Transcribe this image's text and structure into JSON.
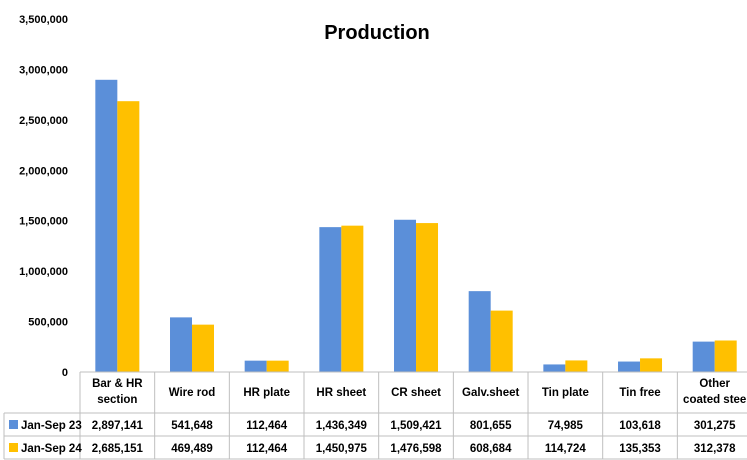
{
  "chart_data": {
    "type": "bar",
    "title": "Production",
    "xlabel": "",
    "ylabel": "",
    "ylim": [
      0,
      3500000
    ],
    "yticks": [
      0,
      500000,
      1000000,
      1500000,
      2000000,
      2500000,
      3000000,
      3500000
    ],
    "ytick_labels": [
      "0",
      "500,000",
      "1,000,000",
      "1,500,000",
      "2,000,000",
      "2,500,000",
      "3,000,000",
      "3,500,000"
    ],
    "grid": false,
    "legend": "data-table-below",
    "categories": [
      [
        "Bar & HR",
        "section"
      ],
      [
        "Wire rod"
      ],
      [
        "HR plate"
      ],
      [
        "HR sheet"
      ],
      [
        "CR sheet"
      ],
      [
        "Galv.sheet"
      ],
      [
        "Tin plate"
      ],
      [
        "Tin free"
      ],
      [
        "Other",
        "coated stee"
      ]
    ],
    "series": [
      {
        "name": "Jan-Sep 23",
        "color": "#5B8FD9",
        "values": [
          2897141,
          541648,
          112464,
          1436349,
          1509421,
          801655,
          74985,
          103618,
          301275
        ],
        "labels": [
          "2,897,141",
          "541,648",
          "112,464",
          "1,436,349",
          "1,509,421",
          "801,655",
          "74,985",
          "103,618",
          "301,275"
        ]
      },
      {
        "name": "Jan-Sep 24",
        "color": "#FFC000",
        "values": [
          2685151,
          469489,
          112464,
          1450975,
          1476598,
          608684,
          114724,
          135353,
          312378
        ],
        "labels": [
          "2,685,151",
          "469,489",
          "112,464",
          "1,450,975",
          "1,476,598",
          "608,684",
          "114,724",
          "135,353",
          "312,378"
        ]
      }
    ]
  }
}
